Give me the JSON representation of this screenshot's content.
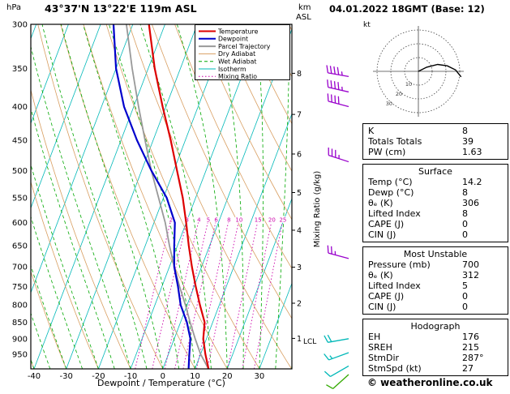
{
  "titles": {
    "station": "43°37'N 13°22'E 119m ASL",
    "datetime": "04.01.2022 18GMT (Base: 12)",
    "pressure_unit": "hPa",
    "km": "km",
    "asl": "ASL",
    "kt": "kt",
    "lcl": "LCL",
    "xlabel": "Dewpoint / Temperature (°C)",
    "mixing_ratio_label": "Mixing Ratio (g/kg)"
  },
  "colors": {
    "temperature": "#dd0000",
    "dewpoint": "#0000cc",
    "parcel": "#999999",
    "dry_adiabat": "#d89e60",
    "wet_adiabat": "#00a800",
    "isotherm": "#00b8b8",
    "mixing_ratio": "#cc00aa",
    "axis": "#000000"
  },
  "legend": [
    {
      "label": "Temperature",
      "color": "#dd0000",
      "dash": "",
      "width": 2
    },
    {
      "label": "Dewpoint",
      "color": "#0000cc",
      "dash": "",
      "width": 2
    },
    {
      "label": "Parcel Trajectory",
      "color": "#999999",
      "dash": "",
      "width": 2
    },
    {
      "label": "Dry Adiabat",
      "color": "#d89e60",
      "dash": "",
      "width": 1
    },
    {
      "label": "Wet Adiabat",
      "color": "#00a800",
      "dash": "4,3",
      "width": 1
    },
    {
      "label": "Isotherm",
      "color": "#00b8b8",
      "dash": "",
      "width": 1
    },
    {
      "label": "Mixing Ratio",
      "color": "#cc00aa",
      "dash": "1.5,2.5",
      "width": 1
    }
  ],
  "chart_data": [
    {
      "type": "line",
      "subtype": "skew-t-log-p-sounding",
      "title": "43°37'N 13°22'E 119m ASL",
      "xlabel": "Dewpoint / Temperature (°C)",
      "ylabel": "hPa",
      "x_range_c": [
        -40,
        40
      ],
      "pressure_range_hpa": [
        1000,
        300
      ],
      "pressure_ticks": [
        300,
        350,
        400,
        450,
        500,
        550,
        600,
        650,
        700,
        750,
        800,
        850,
        900,
        950
      ],
      "temp_ticks_c": [
        -40,
        -30,
        -20,
        -10,
        0,
        10,
        20,
        30
      ],
      "km_asl_ticks": [
        {
          "label": "1",
          "pressure": 899
        },
        {
          "label": "2",
          "pressure": 795
        },
        {
          "label": "3",
          "pressure": 701
        },
        {
          "label": "4",
          "pressure": 616
        },
        {
          "label": "5",
          "pressure": 540
        },
        {
          "label": "6",
          "pressure": 472
        },
        {
          "label": "7",
          "pressure": 411
        },
        {
          "label": "8",
          "pressure": 356
        }
      ],
      "lcl_pressure": 905,
      "pressure_levels": [
        1000,
        950,
        900,
        850,
        800,
        750,
        700,
        650,
        600,
        550,
        500,
        450,
        400,
        350,
        300
      ],
      "series": [
        {
          "name": "Temperature",
          "color": "#dd0000",
          "width": 2.2,
          "values": [
            14.2,
            11.5,
            9,
            7.5,
            4,
            0.5,
            -3,
            -6.5,
            -10,
            -14,
            -19,
            -24.5,
            -31,
            -38,
            -45
          ]
        },
        {
          "name": "Dewpoint",
          "color": "#0000cc",
          "width": 2.2,
          "values": [
            8,
            6.5,
            5,
            2,
            -2,
            -5,
            -8.5,
            -11,
            -13.5,
            -19,
            -27,
            -35,
            -43,
            -50,
            -56
          ]
        },
        {
          "name": "Parcel Trajectory",
          "color": "#999999",
          "width": 1.8,
          "values": [
            14.2,
            10,
            6.5,
            3,
            -0.5,
            -4.5,
            -8.5,
            -12.5,
            -16.5,
            -21.5,
            -27,
            -32.5,
            -38.5,
            -45,
            -52
          ]
        }
      ],
      "isotherms_c": {
        "min": -120,
        "max": 40,
        "step": 10
      },
      "dry_adiabats_c": {
        "min": -40,
        "max": 110,
        "step": 10
      },
      "wet_adiabats_c": {
        "min": -40,
        "max": 40,
        "step": 5
      },
      "mixing_ratio_gkg": [
        2,
        3,
        4,
        5,
        6,
        8,
        10,
        15,
        20,
        25
      ],
      "wind_barbs": [
        {
          "pressure": 360,
          "speed_kt": 45,
          "dir_deg": 280,
          "color": "#9900cc"
        },
        {
          "pressure": 380,
          "speed_kt": 45,
          "dir_deg": 283,
          "color": "#9900cc"
        },
        {
          "pressure": 400,
          "speed_kt": 40,
          "dir_deg": 285,
          "color": "#9900cc"
        },
        {
          "pressure": 485,
          "speed_kt": 35,
          "dir_deg": 288,
          "color": "#9900cc"
        },
        {
          "pressure": 680,
          "speed_kt": 25,
          "dir_deg": 285,
          "color": "#9900cc"
        },
        {
          "pressure": 900,
          "speed_kt": 20,
          "dir_deg": 260,
          "color": "#00b8b8"
        },
        {
          "pressure": 945,
          "speed_kt": 15,
          "dir_deg": 250,
          "color": "#00b8b8"
        },
        {
          "pressure": 990,
          "speed_kt": 10,
          "dir_deg": 240,
          "color": "#00b8b8"
        },
        {
          "pressure": 1020,
          "speed_kt": 10,
          "dir_deg": 228,
          "color": "#33aa00"
        }
      ]
    },
    {
      "type": "line",
      "subtype": "hodograph",
      "unit": "kt",
      "rings_kt": [
        10,
        20,
        30
      ],
      "trace_uv_kt": [
        [
          0,
          0
        ],
        [
          6,
          3
        ],
        [
          14,
          5
        ],
        [
          21,
          4
        ],
        [
          27,
          1
        ],
        [
          31,
          -4
        ]
      ],
      "storm_dir_deg": 287,
      "storm_speed_kt": 27
    }
  ],
  "tables": [
    {
      "title": "",
      "rows": [
        [
          "K",
          "8"
        ],
        [
          "Totals Totals",
          "39"
        ],
        [
          "PW (cm)",
          "1.63"
        ]
      ]
    },
    {
      "title": "Surface",
      "rows": [
        [
          "Temp (°C)",
          "14.2"
        ],
        [
          "Dewp (°C)",
          "8"
        ],
        [
          "θₑ (K)",
          "306"
        ],
        [
          "Lifted Index",
          "8"
        ],
        [
          "CAPE (J)",
          "0"
        ],
        [
          "CIN (J)",
          "0"
        ]
      ]
    },
    {
      "title": "Most Unstable",
      "rows": [
        [
          "Pressure (mb)",
          "700"
        ],
        [
          "θₑ (K)",
          "312"
        ],
        [
          "Lifted Index",
          "5"
        ],
        [
          "CAPE (J)",
          "0"
        ],
        [
          "CIN (J)",
          "0"
        ]
      ]
    },
    {
      "title": "Hodograph",
      "rows": [
        [
          "EH",
          "176"
        ],
        [
          "SREH",
          "215"
        ],
        [
          "StmDir",
          "287°"
        ],
        [
          "StmSpd (kt)",
          "27"
        ]
      ]
    }
  ],
  "footer": {
    "credit": "© weatheronline.co.uk"
  }
}
